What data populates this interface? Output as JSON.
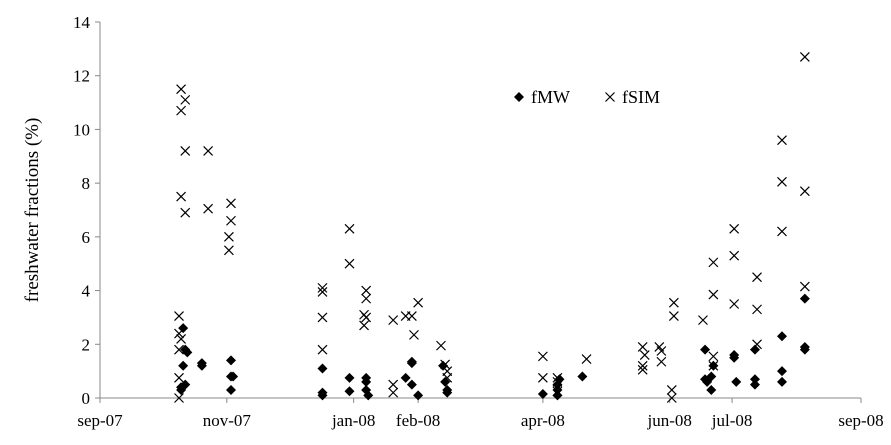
{
  "chart_data": {
    "type": "scatter",
    "title": "",
    "xlabel": "",
    "ylabel": "freshwater fractions (%)",
    "ylim": [
      0,
      14
    ],
    "y_ticks": [
      "0",
      "2",
      "4",
      "6",
      "8",
      "10",
      "12",
      "14"
    ],
    "x_range": [
      "2007-09-01",
      "2008-09-01"
    ],
    "x_ticks": [
      {
        "date": "2007-09-01",
        "label": "sep-07"
      },
      {
        "date": "2007-11-01",
        "label": "nov-07"
      },
      {
        "date": "2008-01-01",
        "label": "jan-08"
      },
      {
        "date": "2008-02-01",
        "label": "feb-08"
      },
      {
        "date": "2008-04-01",
        "label": "apr-08"
      },
      {
        "date": "2008-06-01",
        "label": "jun-08"
      },
      {
        "date": "2008-07-01",
        "label": "jul-08"
      },
      {
        "date": "2008-09-01",
        "label": "sep-08"
      }
    ],
    "grid": false,
    "legend_position": "top-right",
    "series": [
      {
        "name": "fMW",
        "marker": "diamond",
        "color": "#000000",
        "points": [
          {
            "x": "2007-10-10",
            "y": 0.3
          },
          {
            "x": "2007-10-10",
            "y": 0.4
          },
          {
            "x": "2007-10-11",
            "y": 2.6
          },
          {
            "x": "2007-10-11",
            "y": 1.2
          },
          {
            "x": "2007-10-12",
            "y": 0.5
          },
          {
            "x": "2007-10-12",
            "y": 1.8
          },
          {
            "x": "2007-10-13",
            "y": 1.7
          },
          {
            "x": "2007-10-20",
            "y": 1.2
          },
          {
            "x": "2007-10-20",
            "y": 1.3
          },
          {
            "x": "2007-11-03",
            "y": 1.4
          },
          {
            "x": "2007-11-03",
            "y": 0.8
          },
          {
            "x": "2007-11-03",
            "y": 0.3
          },
          {
            "x": "2007-11-04",
            "y": 0.8
          },
          {
            "x": "2007-12-17",
            "y": 1.1
          },
          {
            "x": "2007-12-17",
            "y": 0.2
          },
          {
            "x": "2007-12-17",
            "y": 0.1
          },
          {
            "x": "2007-12-30",
            "y": 0.75
          },
          {
            "x": "2007-12-30",
            "y": 0.25
          },
          {
            "x": "2008-01-07",
            "y": 0.75
          },
          {
            "x": "2008-01-07",
            "y": 0.6
          },
          {
            "x": "2008-01-07",
            "y": 0.3
          },
          {
            "x": "2008-01-08",
            "y": 0.1
          },
          {
            "x": "2008-01-26",
            "y": 0.75
          },
          {
            "x": "2008-01-29",
            "y": 1.3
          },
          {
            "x": "2008-01-29",
            "y": 1.35
          },
          {
            "x": "2008-01-29",
            "y": 0.5
          },
          {
            "x": "2008-02-01",
            "y": 0.1
          },
          {
            "x": "2008-02-13",
            "y": 1.2
          },
          {
            "x": "2008-02-14",
            "y": 0.6
          },
          {
            "x": "2008-02-15",
            "y": 0.3
          },
          {
            "x": "2008-02-15",
            "y": 0.2
          },
          {
            "x": "2008-04-01",
            "y": 0.15
          },
          {
            "x": "2008-04-08",
            "y": 0.5
          },
          {
            "x": "2008-04-08",
            "y": 0.3
          },
          {
            "x": "2008-04-08",
            "y": 0.1
          },
          {
            "x": "2008-04-09",
            "y": 0.7
          },
          {
            "x": "2008-04-20",
            "y": 0.8
          },
          {
            "x": "2008-06-18",
            "y": 1.8
          },
          {
            "x": "2008-06-18",
            "y": 0.7
          },
          {
            "x": "2008-06-19",
            "y": 0.6
          },
          {
            "x": "2008-06-21",
            "y": 0.8
          },
          {
            "x": "2008-06-21",
            "y": 0.3
          },
          {
            "x": "2008-06-22",
            "y": 1.2
          },
          {
            "x": "2008-07-02",
            "y": 1.5
          },
          {
            "x": "2008-07-02",
            "y": 1.6
          },
          {
            "x": "2008-07-03",
            "y": 0.6
          },
          {
            "x": "2008-07-12",
            "y": 1.8
          },
          {
            "x": "2008-07-12",
            "y": 0.7
          },
          {
            "x": "2008-07-12",
            "y": 0.5
          },
          {
            "x": "2008-07-25",
            "y": 2.3
          },
          {
            "x": "2008-07-25",
            "y": 1.0
          },
          {
            "x": "2008-07-25",
            "y": 0.6
          },
          {
            "x": "2008-08-05",
            "y": 3.7
          },
          {
            "x": "2008-08-05",
            "y": 1.9
          },
          {
            "x": "2008-08-05",
            "y": 1.8
          }
        ]
      },
      {
        "name": "fSIM",
        "marker": "x",
        "color": "#000000",
        "points": [
          {
            "x": "2007-10-09",
            "y": 3.05
          },
          {
            "x": "2007-10-09",
            "y": 2.4
          },
          {
            "x": "2007-10-09",
            "y": 1.8
          },
          {
            "x": "2007-10-09",
            "y": 0.75
          },
          {
            "x": "2007-10-09",
            "y": 0.0
          },
          {
            "x": "2007-10-10",
            "y": 11.5
          },
          {
            "x": "2007-10-10",
            "y": 10.7
          },
          {
            "x": "2007-10-10",
            "y": 7.5
          },
          {
            "x": "2007-10-10",
            "y": 2.2
          },
          {
            "x": "2007-10-12",
            "y": 11.1
          },
          {
            "x": "2007-10-12",
            "y": 9.2
          },
          {
            "x": "2007-10-12",
            "y": 6.9
          },
          {
            "x": "2007-10-23",
            "y": 9.2
          },
          {
            "x": "2007-10-23",
            "y": 7.05
          },
          {
            "x": "2007-11-03",
            "y": 7.25
          },
          {
            "x": "2007-11-03",
            "y": 6.6
          },
          {
            "x": "2007-11-02",
            "y": 6.0
          },
          {
            "x": "2007-11-02",
            "y": 5.5
          },
          {
            "x": "2007-12-17",
            "y": 4.1
          },
          {
            "x": "2007-12-17",
            "y": 3.95
          },
          {
            "x": "2007-12-17",
            "y": 3.0
          },
          {
            "x": "2007-12-17",
            "y": 1.8
          },
          {
            "x": "2007-12-30",
            "y": 6.3
          },
          {
            "x": "2007-12-30",
            "y": 5.0
          },
          {
            "x": "2008-01-06",
            "y": 3.1
          },
          {
            "x": "2008-01-06",
            "y": 2.7
          },
          {
            "x": "2008-01-07",
            "y": 4.0
          },
          {
            "x": "2008-01-07",
            "y": 3.7
          },
          {
            "x": "2008-01-07",
            "y": 3.0
          },
          {
            "x": "2008-01-20",
            "y": 2.9
          },
          {
            "x": "2008-01-20",
            "y": 0.5
          },
          {
            "x": "2008-01-20",
            "y": 0.2
          },
          {
            "x": "2008-01-26",
            "y": 3.05
          },
          {
            "x": "2008-01-29",
            "y": 3.05
          },
          {
            "x": "2008-01-30",
            "y": 2.35
          },
          {
            "x": "2008-02-01",
            "y": 3.55
          },
          {
            "x": "2008-02-12",
            "y": 1.95
          },
          {
            "x": "2008-02-14",
            "y": 1.25
          },
          {
            "x": "2008-02-15",
            "y": 1.0
          },
          {
            "x": "2008-02-15",
            "y": 0.75
          },
          {
            "x": "2008-04-01",
            "y": 1.55
          },
          {
            "x": "2008-04-01",
            "y": 0.75
          },
          {
            "x": "2008-04-08",
            "y": 0.75
          },
          {
            "x": "2008-04-08",
            "y": 0.6
          },
          {
            "x": "2008-04-08",
            "y": 0.25
          },
          {
            "x": "2008-04-22",
            "y": 1.45
          },
          {
            "x": "2008-05-19",
            "y": 1.9
          },
          {
            "x": "2008-05-19",
            "y": 1.2
          },
          {
            "x": "2008-05-19",
            "y": 1.05
          },
          {
            "x": "2008-05-20",
            "y": 1.6
          },
          {
            "x": "2008-05-27",
            "y": 1.9
          },
          {
            "x": "2008-05-28",
            "y": 1.75
          },
          {
            "x": "2008-05-28",
            "y": 1.35
          },
          {
            "x": "2008-06-02",
            "y": 0.3
          },
          {
            "x": "2008-06-02",
            "y": 0.0
          },
          {
            "x": "2008-06-03",
            "y": 3.55
          },
          {
            "x": "2008-06-03",
            "y": 3.05
          },
          {
            "x": "2008-06-17",
            "y": 2.9
          },
          {
            "x": "2008-06-22",
            "y": 5.05
          },
          {
            "x": "2008-06-22",
            "y": 3.85
          },
          {
            "x": "2008-06-22",
            "y": 1.55
          },
          {
            "x": "2008-06-22",
            "y": 1.2
          },
          {
            "x": "2008-07-02",
            "y": 6.3
          },
          {
            "x": "2008-07-02",
            "y": 5.3
          },
          {
            "x": "2008-07-02",
            "y": 3.5
          },
          {
            "x": "2008-07-13",
            "y": 4.5
          },
          {
            "x": "2008-07-13",
            "y": 3.3
          },
          {
            "x": "2008-07-13",
            "y": 2.0
          },
          {
            "x": "2008-07-25",
            "y": 9.6
          },
          {
            "x": "2008-07-25",
            "y": 8.05
          },
          {
            "x": "2008-07-25",
            "y": 6.2
          },
          {
            "x": "2008-08-05",
            "y": 12.7
          },
          {
            "x": "2008-08-05",
            "y": 7.7
          },
          {
            "x": "2008-08-05",
            "y": 4.15
          }
        ]
      }
    ]
  }
}
